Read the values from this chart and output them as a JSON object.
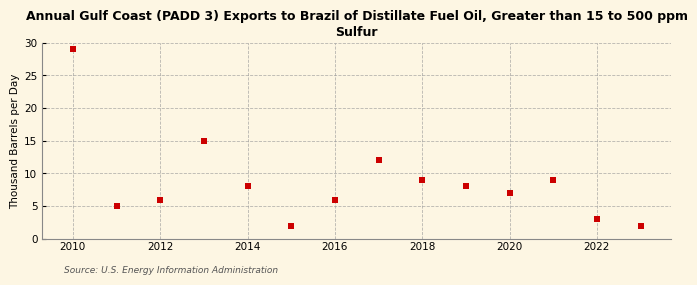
{
  "title": "Annual Gulf Coast (PADD 3) Exports to Brazil of Distillate Fuel Oil, Greater than 15 to 500 ppm\nSulfur",
  "ylabel": "Thousand Barrels per Day",
  "source": "Source: U.S. Energy Information Administration",
  "years": [
    2010,
    2011,
    2012,
    2013,
    2014,
    2015,
    2016,
    2017,
    2018,
    2019,
    2020,
    2021,
    2022,
    2023
  ],
  "values": [
    29.0,
    5.0,
    6.0,
    15.0,
    8.0,
    2.0,
    6.0,
    12.0,
    9.0,
    8.0,
    7.0,
    9.0,
    3.0,
    2.0
  ],
  "marker_color": "#cc0000",
  "marker_size": 5,
  "background_color": "#fdf6e3",
  "grid_color": "#999999",
  "ylim": [
    0,
    30
  ],
  "yticks": [
    0,
    5,
    10,
    15,
    20,
    25,
    30
  ],
  "xlim": [
    2009.3,
    2023.7
  ],
  "xticks": [
    2010,
    2012,
    2014,
    2016,
    2018,
    2020,
    2022
  ]
}
